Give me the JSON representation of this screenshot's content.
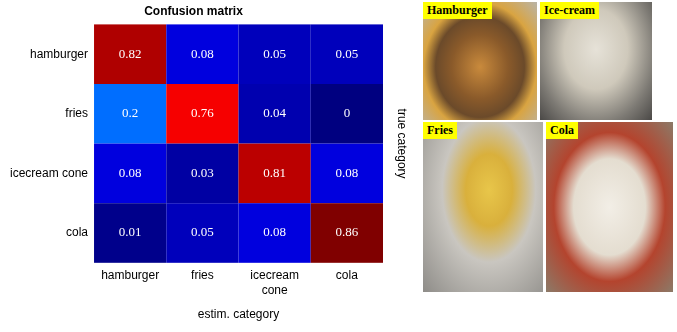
{
  "chart_data": {
    "type": "heatmap",
    "title": "Confusion matrix",
    "categories": [
      "hamburger",
      "fries",
      "icecream cone",
      "cola"
    ],
    "y_categories": [
      "hamburger",
      "fries",
      "icecream cone",
      "cola"
    ],
    "x_label": "estim. category",
    "y_label": "true category",
    "cells": [
      [
        0.82,
        0.08,
        0.05,
        0.05
      ],
      [
        0.2,
        0.76,
        0.04,
        0
      ],
      [
        0.08,
        0.03,
        0.81,
        0.08
      ],
      [
        0.01,
        0.05,
        0.08,
        0.86
      ]
    ],
    "color": "jet",
    "data_labels": true,
    "grid": false
  },
  "photos": [
    {
      "label": "Hamburger"
    },
    {
      "label": "Ice-cream"
    },
    {
      "label": "Fries"
    },
    {
      "label": "Cola"
    }
  ]
}
